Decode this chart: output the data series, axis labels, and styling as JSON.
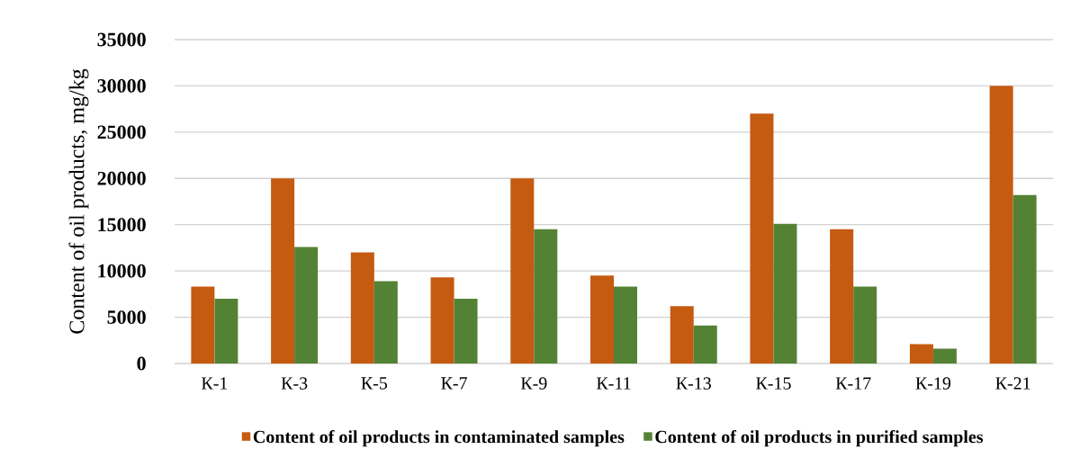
{
  "chart_data": {
    "type": "bar",
    "ylabel": "Content of oil products, mg/kg",
    "categories": [
      "К-1",
      "К-3",
      "К-5",
      "К-7",
      "К-9",
      "К-11",
      "К-13",
      "К-15",
      "К-17",
      "К-19",
      "К-21"
    ],
    "series": [
      {
        "name": "Content of oil products in contaminated samples",
        "color": "#c55a11",
        "values": [
          8300,
          20000,
          12000,
          9300,
          20000,
          9500,
          6200,
          27000,
          14500,
          2100,
          30000
        ]
      },
      {
        "name": "Content of oil products in purified samples",
        "color": "#548235",
        "values": [
          7000,
          12600,
          8900,
          7000,
          14500,
          8300,
          4100,
          15100,
          8300,
          1600,
          18200
        ]
      }
    ],
    "ylim": [
      0,
      35000
    ],
    "yticks": [
      0,
      5000,
      10000,
      15000,
      20000,
      25000,
      30000,
      35000
    ],
    "grid": "y",
    "legend": "bottom"
  }
}
